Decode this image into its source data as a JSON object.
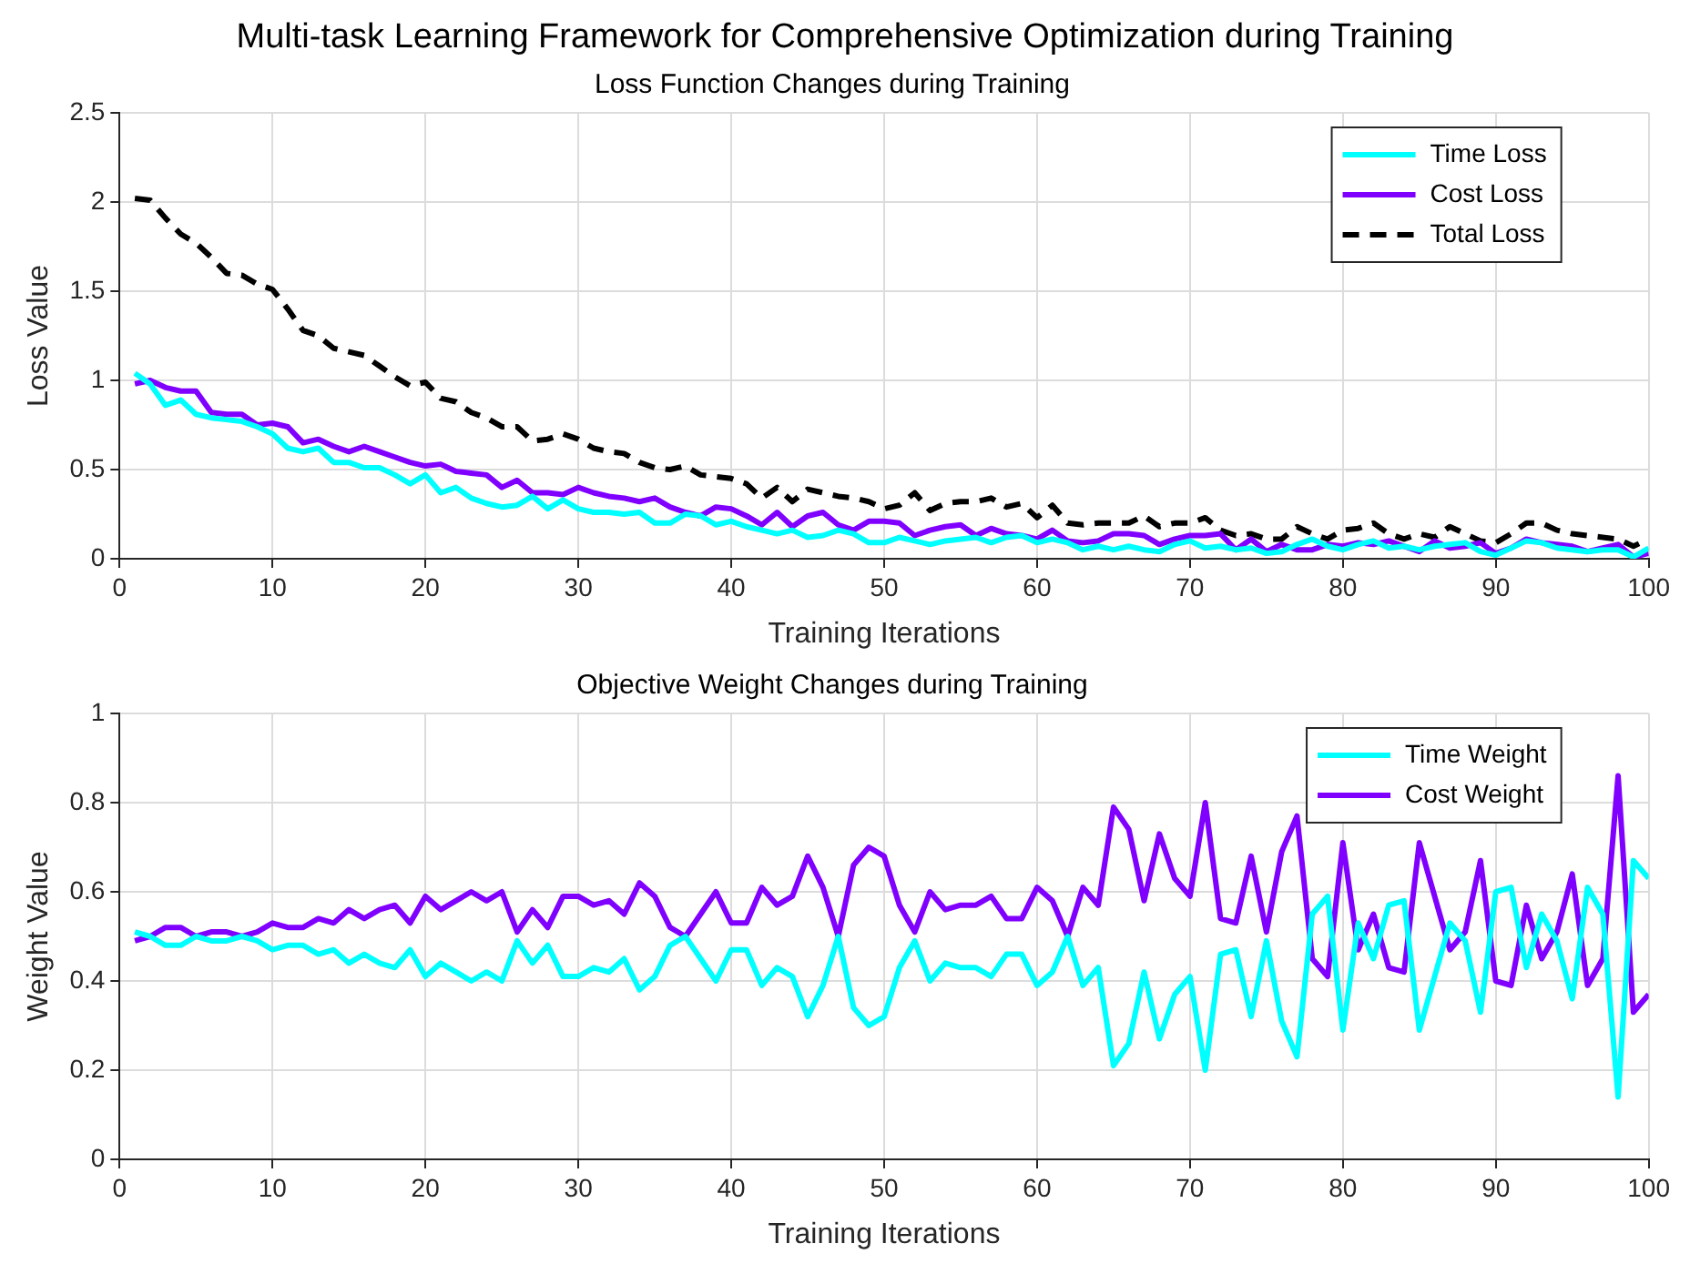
{
  "chart_data": [
    {
      "type": "line",
      "title": "Multi-task Learning Framework for Comprehensive Optimization during Training",
      "subtitle": "Loss Function Changes during Training",
      "xlabel": "Training Iterations",
      "ylabel": "Loss Value",
      "x": [
        1,
        2,
        3,
        4,
        5,
        6,
        7,
        8,
        9,
        10,
        11,
        12,
        13,
        14,
        15,
        16,
        17,
        18,
        19,
        20,
        21,
        22,
        23,
        24,
        25,
        26,
        27,
        28,
        29,
        30,
        31,
        32,
        33,
        34,
        35,
        36,
        37,
        38,
        39,
        40,
        41,
        42,
        43,
        44,
        45,
        46,
        47,
        48,
        49,
        50,
        51,
        52,
        53,
        54,
        55,
        56,
        57,
        58,
        59,
        60,
        61,
        62,
        63,
        64,
        65,
        66,
        67,
        68,
        69,
        70,
        71,
        72,
        73,
        74,
        75,
        76,
        77,
        78,
        79,
        80,
        81,
        82,
        83,
        84,
        85,
        86,
        87,
        88,
        89,
        90,
        91,
        92,
        93,
        94,
        95,
        96,
        97,
        98,
        99,
        100
      ],
      "series": [
        {
          "name": "Time Loss",
          "color": "#00ffff",
          "line_style": "solid",
          "values": [
            1.04,
            0.98,
            0.86,
            0.89,
            0.81,
            0.79,
            0.78,
            0.77,
            0.74,
            0.7,
            0.62,
            0.6,
            0.62,
            0.54,
            0.54,
            0.51,
            0.51,
            0.47,
            0.42,
            0.47,
            0.37,
            0.4,
            0.34,
            0.31,
            0.29,
            0.3,
            0.35,
            0.28,
            0.33,
            0.28,
            0.26,
            0.26,
            0.25,
            0.26,
            0.2,
            0.2,
            0.25,
            0.24,
            0.19,
            0.21,
            0.18,
            0.16,
            0.14,
            0.16,
            0.12,
            0.13,
            0.16,
            0.14,
            0.09,
            0.09,
            0.12,
            0.1,
            0.08,
            0.1,
            0.11,
            0.12,
            0.09,
            0.12,
            0.13,
            0.09,
            0.11,
            0.09,
            0.05,
            0.07,
            0.05,
            0.07,
            0.05,
            0.04,
            0.08,
            0.1,
            0.06,
            0.07,
            0.05,
            0.06,
            0.03,
            0.04,
            0.08,
            0.11,
            0.07,
            0.05,
            0.08,
            0.1,
            0.06,
            0.07,
            0.05,
            0.07,
            0.08,
            0.09,
            0.04,
            0.02,
            0.06,
            0.1,
            0.09,
            0.06,
            0.05,
            0.04,
            0.05,
            0.05,
            0.01,
            0.06
          ]
        },
        {
          "name": "Cost Loss",
          "color": "#8000ff",
          "line_style": "solid",
          "values": [
            0.98,
            1.0,
            0.96,
            0.94,
            0.94,
            0.82,
            0.81,
            0.81,
            0.75,
            0.76,
            0.74,
            0.65,
            0.67,
            0.63,
            0.6,
            0.63,
            0.6,
            0.57,
            0.54,
            0.52,
            0.53,
            0.49,
            0.48,
            0.47,
            0.4,
            0.44,
            0.37,
            0.37,
            0.36,
            0.4,
            0.37,
            0.35,
            0.34,
            0.32,
            0.34,
            0.29,
            0.26,
            0.24,
            0.29,
            0.28,
            0.24,
            0.19,
            0.26,
            0.18,
            0.24,
            0.26,
            0.19,
            0.16,
            0.21,
            0.21,
            0.2,
            0.13,
            0.16,
            0.18,
            0.19,
            0.13,
            0.17,
            0.14,
            0.13,
            0.11,
            0.16,
            0.1,
            0.09,
            0.1,
            0.14,
            0.14,
            0.13,
            0.08,
            0.11,
            0.13,
            0.13,
            0.14,
            0.05,
            0.11,
            0.04,
            0.08,
            0.05,
            0.05,
            0.08,
            0.07,
            0.09,
            0.08,
            0.1,
            0.07,
            0.04,
            0.1,
            0.06,
            0.07,
            0.09,
            0.03,
            0.06,
            0.11,
            0.09,
            0.08,
            0.07,
            0.04,
            0.06,
            0.08,
            0.01,
            0.03
          ]
        },
        {
          "name": "Total Loss",
          "color": "#000000",
          "line_style": "dashed",
          "values": [
            2.02,
            2.01,
            1.91,
            1.82,
            1.77,
            1.69,
            1.6,
            1.59,
            1.54,
            1.51,
            1.4,
            1.28,
            1.25,
            1.18,
            1.16,
            1.14,
            1.08,
            1.02,
            0.97,
            0.99,
            0.9,
            0.88,
            0.82,
            0.79,
            0.74,
            0.74,
            0.66,
            0.67,
            0.7,
            0.67,
            0.62,
            0.6,
            0.59,
            0.54,
            0.51,
            0.5,
            0.52,
            0.47,
            0.46,
            0.45,
            0.42,
            0.34,
            0.4,
            0.32,
            0.39,
            0.37,
            0.35,
            0.34,
            0.32,
            0.28,
            0.3,
            0.37,
            0.27,
            0.31,
            0.32,
            0.32,
            0.34,
            0.29,
            0.31,
            0.23,
            0.3,
            0.2,
            0.19,
            0.2,
            0.2,
            0.2,
            0.24,
            0.18,
            0.2,
            0.2,
            0.23,
            0.16,
            0.13,
            0.14,
            0.11,
            0.11,
            0.18,
            0.14,
            0.11,
            0.16,
            0.17,
            0.2,
            0.14,
            0.11,
            0.14,
            0.12,
            0.18,
            0.14,
            0.1,
            0.09,
            0.14,
            0.2,
            0.2,
            0.16,
            0.14,
            0.13,
            0.12,
            0.11,
            0.07,
            0.11
          ]
        }
      ],
      "xlim": [
        0,
        100
      ],
      "xticks": [
        0,
        10,
        20,
        30,
        40,
        50,
        60,
        70,
        80,
        90,
        100
      ],
      "ylim": [
        0,
        2.5
      ],
      "yticks": [
        0,
        0.5,
        1,
        1.5,
        2,
        2.5
      ],
      "grid": true,
      "legend": "top right"
    },
    {
      "type": "line",
      "title": "Objective Weight Changes during Training",
      "xlabel": "Training Iterations",
      "ylabel": "Weight Value",
      "x": [
        1,
        2,
        3,
        4,
        5,
        6,
        7,
        8,
        9,
        10,
        11,
        12,
        13,
        14,
        15,
        16,
        17,
        18,
        19,
        20,
        21,
        22,
        23,
        24,
        25,
        26,
        27,
        28,
        29,
        30,
        31,
        32,
        33,
        34,
        35,
        36,
        37,
        38,
        39,
        40,
        41,
        42,
        43,
        44,
        45,
        46,
        47,
        48,
        49,
        50,
        51,
        52,
        53,
        54,
        55,
        56,
        57,
        58,
        59,
        60,
        61,
        62,
        63,
        64,
        65,
        66,
        67,
        68,
        69,
        70,
        71,
        72,
        73,
        74,
        75,
        76,
        77,
        78,
        79,
        80,
        81,
        82,
        83,
        84,
        85,
        86,
        87,
        88,
        89,
        90,
        91,
        92,
        93,
        94,
        95,
        96,
        97,
        98,
        99,
        100
      ],
      "series": [
        {
          "name": "Time Weight",
          "color": "#00ffff",
          "values": [
            0.51,
            0.5,
            0.48,
            0.48,
            0.5,
            0.49,
            0.49,
            0.5,
            0.49,
            0.47,
            0.48,
            0.48,
            0.46,
            0.47,
            0.44,
            0.46,
            0.44,
            0.43,
            0.47,
            0.41,
            0.44,
            0.42,
            0.4,
            0.42,
            0.4,
            0.49,
            0.44,
            0.48,
            0.41,
            0.41,
            0.43,
            0.42,
            0.45,
            0.38,
            0.41,
            0.48,
            0.5,
            0.45,
            0.4,
            0.47,
            0.47,
            0.39,
            0.43,
            0.41,
            0.32,
            0.39,
            0.5,
            0.34,
            0.3,
            0.32,
            0.43,
            0.49,
            0.4,
            0.44,
            0.43,
            0.43,
            0.41,
            0.46,
            0.46,
            0.39,
            0.42,
            0.5,
            0.39,
            0.43,
            0.21,
            0.26,
            0.42,
            0.27,
            0.37,
            0.41,
            0.2,
            0.46,
            0.47,
            0.32,
            0.49,
            0.31,
            0.23,
            0.55,
            0.59,
            0.29,
            0.53,
            0.45,
            0.57,
            0.58,
            0.29,
            0.41,
            0.53,
            0.49,
            0.33,
            0.6,
            0.61,
            0.43,
            0.55,
            0.49,
            0.36,
            0.61,
            0.55,
            0.14,
            0.67,
            0.63
          ]
        },
        {
          "name": "Cost Weight",
          "color": "#8000ff",
          "values": [
            0.49,
            0.5,
            0.52,
            0.52,
            0.5,
            0.51,
            0.51,
            0.5,
            0.51,
            0.53,
            0.52,
            0.52,
            0.54,
            0.53,
            0.56,
            0.54,
            0.56,
            0.57,
            0.53,
            0.59,
            0.56,
            0.58,
            0.6,
            0.58,
            0.6,
            0.51,
            0.56,
            0.52,
            0.59,
            0.59,
            0.57,
            0.58,
            0.55,
            0.62,
            0.59,
            0.52,
            0.5,
            0.55,
            0.6,
            0.53,
            0.53,
            0.61,
            0.57,
            0.59,
            0.68,
            0.61,
            0.5,
            0.66,
            0.7,
            0.68,
            0.57,
            0.51,
            0.6,
            0.56,
            0.57,
            0.57,
            0.59,
            0.54,
            0.54,
            0.61,
            0.58,
            0.5,
            0.61,
            0.57,
            0.79,
            0.74,
            0.58,
            0.73,
            0.63,
            0.59,
            0.8,
            0.54,
            0.53,
            0.68,
            0.51,
            0.69,
            0.77,
            0.45,
            0.41,
            0.71,
            0.47,
            0.55,
            0.43,
            0.42,
            0.71,
            0.59,
            0.47,
            0.51,
            0.67,
            0.4,
            0.39,
            0.57,
            0.45,
            0.51,
            0.64,
            0.39,
            0.45,
            0.86,
            0.33,
            0.37
          ]
        }
      ],
      "xlim": [
        0,
        100
      ],
      "xticks": [
        0,
        10,
        20,
        30,
        40,
        50,
        60,
        70,
        80,
        90,
        100
      ],
      "ylim": [
        0,
        1
      ],
      "yticks": [
        0,
        0.2,
        0.4,
        0.6,
        0.8,
        1
      ],
      "grid": true,
      "legend": "top right"
    }
  ]
}
